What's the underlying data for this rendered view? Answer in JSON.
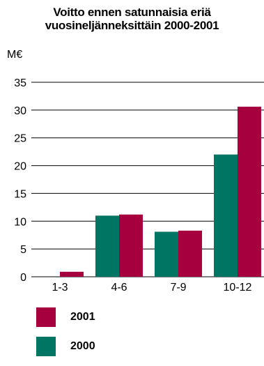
{
  "chart_data": {
    "type": "bar",
    "title_line1": "Voitto ennen satunnaisia eriä",
    "title_line2": "vuosineljänneksittäin 2000-2001",
    "unit_label": "M€",
    "categories": [
      "1-3",
      "4-6",
      "7-9",
      "10-12"
    ],
    "series": [
      {
        "name": "2000",
        "color": "#007563",
        "values": [
          0,
          11.0,
          8.1,
          22.0
        ]
      },
      {
        "name": "2001",
        "color": "#a6003f",
        "values": [
          0.9,
          11.2,
          8.3,
          30.6
        ]
      }
    ],
    "ylim": [
      0,
      35
    ],
    "yticks": [
      0,
      5,
      10,
      15,
      20,
      25,
      30,
      35
    ],
    "grid": true,
    "legend_order": [
      "2001",
      "2000"
    ],
    "legend_position": "bottom-left"
  }
}
